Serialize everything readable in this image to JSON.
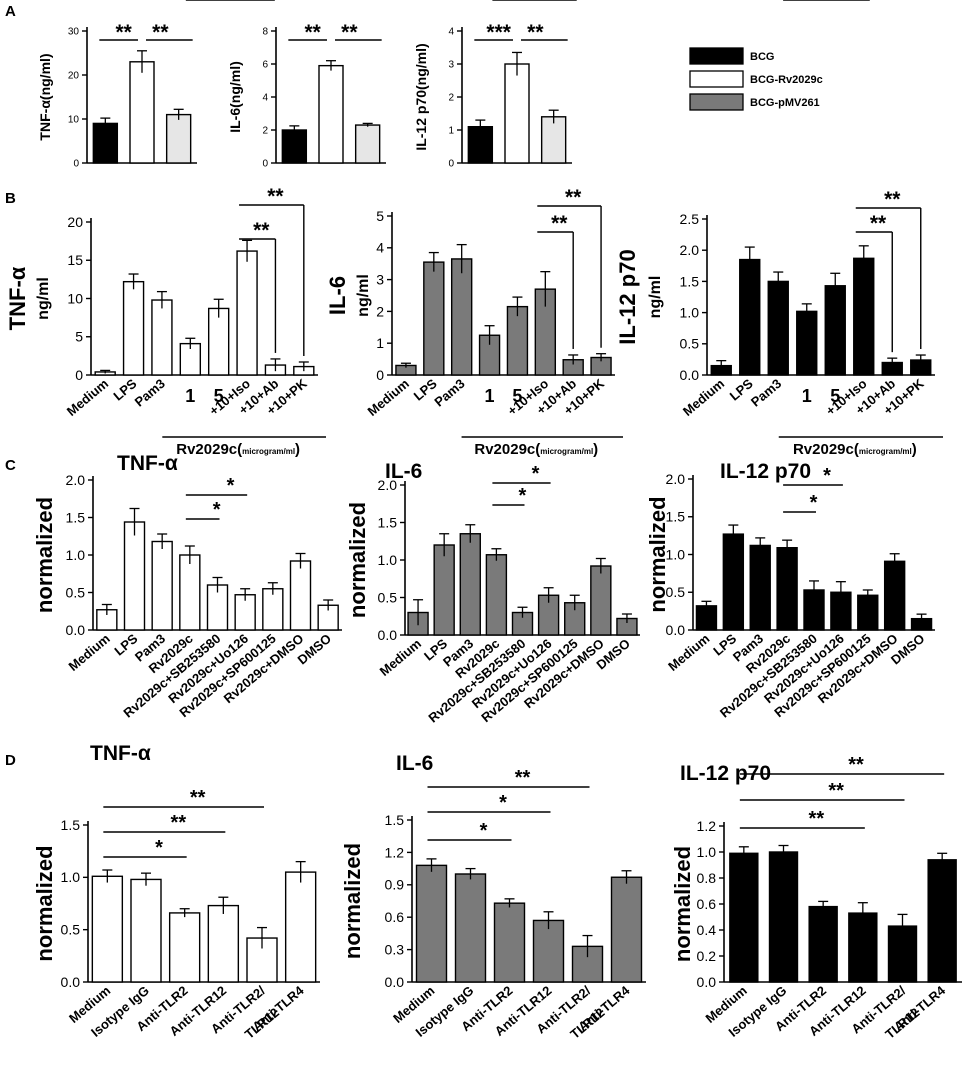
{
  "colors": {
    "black": "#000000",
    "white": "#ffffff",
    "gray": "#7a7a7a",
    "light": "#e6e6e6"
  },
  "legend": [
    {
      "label": "BCG",
      "fill": "#000000"
    },
    {
      "label": "BCG-Rv2029c",
      "fill": "#ffffff"
    },
    {
      "label": "BCG-pMV261",
      "fill": "#7a7a7a"
    }
  ],
  "chart_data": [
    {
      "panel": "A",
      "type": "bar",
      "ylabel": "TNF-α(ng/ml)",
      "ylim": [
        0,
        30
      ],
      "yticks": [
        0,
        10,
        20,
        30
      ],
      "categories": [
        "BCG",
        "BCG-Rv2029c",
        "BCG-pMV261"
      ],
      "values": [
        9,
        23,
        11
      ],
      "errors": [
        1.2,
        2.5,
        1.2
      ],
      "fills": [
        "#000000",
        "#ffffff",
        "#e6e6e6"
      ],
      "sig": [
        {
          "from": 0,
          "to": 1,
          "label": "**"
        },
        {
          "from": 1,
          "to": 2,
          "label": "**"
        }
      ]
    },
    {
      "panel": "A",
      "type": "bar",
      "ylabel": "IL-6(ng/ml)",
      "ylim": [
        0,
        8
      ],
      "yticks": [
        0,
        2,
        4,
        6,
        8
      ],
      "categories": [
        "BCG",
        "BCG-Rv2029c",
        "BCG-pMV261"
      ],
      "values": [
        2.0,
        5.9,
        2.3
      ],
      "errors": [
        0.25,
        0.3,
        0.1
      ],
      "fills": [
        "#000000",
        "#ffffff",
        "#e6e6e6"
      ],
      "sig": [
        {
          "from": 0,
          "to": 1,
          "label": "**"
        },
        {
          "from": 1,
          "to": 2,
          "label": "**"
        }
      ]
    },
    {
      "panel": "A",
      "type": "bar",
      "ylabel": "IL-12 p70(ng/ml)",
      "ylim": [
        0,
        4
      ],
      "yticks": [
        0,
        1,
        2,
        3,
        4
      ],
      "categories": [
        "BCG",
        "BCG-Rv2029c",
        "BCG-pMV261"
      ],
      "values": [
        1.1,
        3.0,
        1.4
      ],
      "errors": [
        0.2,
        0.35,
        0.2
      ],
      "fills": [
        "#000000",
        "#ffffff",
        "#e6e6e6"
      ],
      "sig": [
        {
          "from": 0,
          "to": 1,
          "label": "***"
        },
        {
          "from": 1,
          "to": 2,
          "label": "**"
        }
      ]
    },
    {
      "panel": "B",
      "type": "bar",
      "ylabel": "TNF-α",
      "ylabel2": "ng/ml",
      "ylim": [
        0,
        20
      ],
      "yticks": [
        0,
        5,
        10,
        15,
        20
      ],
      "categories": [
        "Medium",
        "LPS",
        "Pam3",
        "1",
        "5",
        "+10+Iso",
        "+10+Ab",
        "+10+PK"
      ],
      "values": [
        0.4,
        12.2,
        9.8,
        4.1,
        8.7,
        16.2,
        1.3,
        1.1
      ],
      "errors": [
        0.2,
        1.0,
        1.1,
        0.7,
        1.2,
        1.4,
        0.8,
        0.6
      ],
      "fill": "#ffffff",
      "group_label": "Rv2029c(",
      "group_unit": "microgram/ml",
      "group_close": ")",
      "sig": [
        {
          "from": 5,
          "to": 6,
          "label": "**"
        },
        {
          "from": 5,
          "to": 7,
          "label": "**"
        }
      ]
    },
    {
      "panel": "B",
      "type": "bar",
      "ylabel": "IL-6",
      "ylabel2": "ng/ml",
      "ylim": [
        0,
        5
      ],
      "yticks": [
        0,
        1,
        2,
        3,
        4,
        5
      ],
      "categories": [
        "Medium",
        "LPS",
        "Pam3",
        "1",
        "5",
        "+10+Iso",
        "+10+Ab",
        "+10+PK"
      ],
      "values": [
        0.3,
        3.55,
        3.65,
        1.25,
        2.15,
        2.7,
        0.48,
        0.55
      ],
      "errors": [
        0.07,
        0.3,
        0.45,
        0.3,
        0.3,
        0.55,
        0.15,
        0.12
      ],
      "fill": "#7a7a7a",
      "group_label": "Rv2029c(",
      "group_unit": "microgram/ml",
      "group_close": ")",
      "sig": [
        {
          "from": 5,
          "to": 6,
          "label": "**"
        },
        {
          "from": 5,
          "to": 7,
          "label": "**"
        }
      ]
    },
    {
      "panel": "B",
      "type": "bar",
      "ylabel": "IL-12 p70",
      "ylabel2": "ng/ml",
      "ylim": [
        0,
        2.5
      ],
      "yticks": [
        0.0,
        0.5,
        1.0,
        1.5,
        2.0,
        2.5
      ],
      "categories": [
        "Medium",
        "LPS",
        "Pam3",
        "1",
        "5",
        "+10+Iso",
        "+10+Ab",
        "+10+PK"
      ],
      "values": [
        0.15,
        1.85,
        1.5,
        1.02,
        1.43,
        1.87,
        0.2,
        0.24
      ],
      "errors": [
        0.08,
        0.2,
        0.15,
        0.12,
        0.2,
        0.2,
        0.07,
        0.08
      ],
      "fill": "#000000",
      "group_label": "Rv2029c(",
      "group_unit": "microgram/ml",
      "group_close": ")",
      "sig": [
        {
          "from": 5,
          "to": 6,
          "label": "**"
        },
        {
          "from": 5,
          "to": 7,
          "label": "**"
        }
      ]
    },
    {
      "panel": "C",
      "type": "bar",
      "title": "TNF-α",
      "ylabel": "normalized",
      "ylim": [
        0,
        2.0
      ],
      "yticks": [
        0.0,
        0.5,
        1.0,
        1.5,
        2.0
      ],
      "categories": [
        "Medium",
        "LPS",
        "Pam3",
        "Rv2029c",
        "Rv2029c+SB253580",
        "Rv2029c+Uo126",
        "Rv2029c+SP600125",
        "Rv2029c+DMSO",
        "DMSO"
      ],
      "values": [
        0.27,
        1.44,
        1.18,
        1.0,
        0.6,
        0.47,
        0.55,
        0.92,
        0.33
      ],
      "errors": [
        0.07,
        0.18,
        0.1,
        0.12,
        0.1,
        0.08,
        0.08,
        0.1,
        0.07
      ],
      "fill": "#ffffff",
      "sig": [
        {
          "from": 3,
          "to": 4,
          "label": "*"
        },
        {
          "from": 3,
          "to": 5,
          "label": "*"
        },
        {
          "from": 3,
          "to": 6,
          "label": "*"
        }
      ]
    },
    {
      "panel": "C",
      "type": "bar",
      "title": "IL-6",
      "ylabel": "normalized",
      "ylim": [
        0,
        2.0
      ],
      "yticks": [
        0.0,
        0.5,
        1.0,
        1.5,
        2.0
      ],
      "categories": [
        "Medium",
        "LPS",
        "Pam3",
        "Rv2029c",
        "Rv2029c+SB253580",
        "Rv2029c+Uo126",
        "Rv2029c+SP600125",
        "Rv2029c+DMSO",
        "DMSO"
      ],
      "values": [
        0.3,
        1.2,
        1.35,
        1.07,
        0.3,
        0.53,
        0.43,
        0.92,
        0.22
      ],
      "errors": [
        0.17,
        0.15,
        0.12,
        0.08,
        0.07,
        0.1,
        0.1,
        0.1,
        0.06
      ],
      "fill": "#7a7a7a",
      "sig": [
        {
          "from": 3,
          "to": 4,
          "label": "*"
        },
        {
          "from": 3,
          "to": 5,
          "label": "*"
        },
        {
          "from": 3,
          "to": 6,
          "label": "*"
        }
      ]
    },
    {
      "panel": "C",
      "type": "bar",
      "title": "IL-12 p70",
      "ylabel": "normalized",
      "ylim": [
        0,
        2.0
      ],
      "yticks": [
        0.0,
        0.5,
        1.0,
        1.5,
        2.0
      ],
      "categories": [
        "Medium",
        "LPS",
        "Pam3",
        "Rv2029c",
        "Rv2029c+SB253580",
        "Rv2029c+Uo126",
        "Rv2029c+SP600125",
        "Rv2029c+DMSO",
        "DMSO"
      ],
      "values": [
        0.32,
        1.27,
        1.12,
        1.09,
        0.53,
        0.5,
        0.46,
        0.91,
        0.15
      ],
      "errors": [
        0.06,
        0.12,
        0.1,
        0.1,
        0.12,
        0.14,
        0.07,
        0.1,
        0.06
      ],
      "fill": "#000000",
      "sig": [
        {
          "from": 3,
          "to": 4,
          "label": "*"
        },
        {
          "from": 3,
          "to": 5,
          "label": "*"
        },
        {
          "from": 3,
          "to": 6,
          "label": "*"
        }
      ]
    },
    {
      "panel": "D",
      "type": "bar",
      "title": "TNF-α",
      "ylabel": "normalized",
      "ylim": [
        0,
        1.5
      ],
      "yticks": [
        0.0,
        0.5,
        1.0,
        1.5
      ],
      "categories": [
        "Medium",
        "Isotype IgG",
        "Anti-TLR2",
        "Anti-TLR12",
        "Anti-TLR2/",
        "Anti-TLR4"
      ],
      "cat_line2": [
        "",
        "",
        "",
        "",
        "TLR12",
        ""
      ],
      "values": [
        1.01,
        0.98,
        0.66,
        0.73,
        0.42,
        1.05
      ],
      "errors": [
        0.06,
        0.06,
        0.04,
        0.08,
        0.1,
        0.1
      ],
      "fill": "#ffffff",
      "sig": [
        {
          "from": 0,
          "to": 2,
          "label": "*"
        },
        {
          "from": 0,
          "to": 3,
          "label": "**"
        },
        {
          "from": 0,
          "to": 4,
          "label": "**"
        }
      ]
    },
    {
      "panel": "D",
      "type": "bar",
      "title": "IL-6",
      "ylabel": "normalized",
      "ylim": [
        0,
        1.5
      ],
      "yticks": [
        0.0,
        0.3,
        0.6,
        0.9,
        1.2,
        1.5
      ],
      "categories": [
        "Medium",
        "Isotype IgG",
        "Anti-TLR2",
        "Anti-TLR12",
        "Anti-TLR2/",
        "Anti-TLR4"
      ],
      "cat_line2": [
        "",
        "",
        "",
        "",
        "TLR12",
        ""
      ],
      "values": [
        1.08,
        1.0,
        0.73,
        0.57,
        0.33,
        0.97
      ],
      "errors": [
        0.06,
        0.05,
        0.04,
        0.08,
        0.1,
        0.06
      ],
      "fill": "#7a7a7a",
      "sig": [
        {
          "from": 0,
          "to": 2,
          "label": "*"
        },
        {
          "from": 0,
          "to": 3,
          "label": "*"
        },
        {
          "from": 0,
          "to": 4,
          "label": "**"
        }
      ]
    },
    {
      "panel": "D",
      "type": "bar",
      "title": "IL-12 p70",
      "ylabel": "normalized",
      "ylim": [
        0,
        1.2
      ],
      "yticks": [
        0.0,
        0.2,
        0.4,
        0.6,
        0.8,
        1.0,
        1.2
      ],
      "categories": [
        "Medium",
        "Isotype IgG",
        "Anti-TLR2",
        "Anti-TLR12",
        "Anti-TLR2/",
        "Anti-TLR4"
      ],
      "cat_line2": [
        "",
        "",
        "",
        "",
        "TLR12",
        ""
      ],
      "values": [
        0.99,
        1.0,
        0.58,
        0.53,
        0.43,
        0.94
      ],
      "errors": [
        0.05,
        0.05,
        0.04,
        0.08,
        0.09,
        0.05
      ],
      "fill": "#000000",
      "sig": [
        {
          "from": 0,
          "to": 3,
          "label": "**"
        },
        {
          "from": 0,
          "to": 4,
          "label": "**"
        },
        {
          "from": 0,
          "to": 5,
          "label": "**"
        }
      ]
    }
  ]
}
